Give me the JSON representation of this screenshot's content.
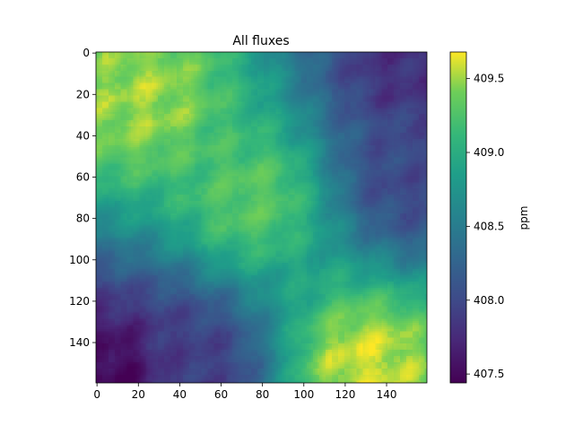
{
  "chart_data": {
    "type": "heatmap",
    "title": "All fluxes",
    "xlabel": "",
    "ylabel": "",
    "grid_size": [
      160,
      160
    ],
    "xlim": [
      0,
      159
    ],
    "ylim": [
      159,
      0
    ],
    "x_ticks": [
      "0",
      "20",
      "40",
      "60",
      "80",
      "100",
      "120",
      "140"
    ],
    "y_ticks": [
      "0",
      "20",
      "40",
      "60",
      "80",
      "100",
      "120",
      "140"
    ],
    "colorbar": {
      "label": "ppm",
      "range": [
        407.44,
        409.68
      ],
      "ticks": [
        "407.5",
        "408.0",
        "408.5",
        "409.0",
        "409.5"
      ],
      "colormap": "viridis"
    },
    "regions": [
      {
        "name": "upper-left high",
        "center": [
          22,
          22
        ],
        "value": 409.5
      },
      {
        "name": "top-right low",
        "center": [
          150,
          8
        ],
        "value": 407.8
      },
      {
        "name": "right-edge low",
        "center": [
          150,
          60
        ],
        "value": 408.0
      },
      {
        "name": "central ridge",
        "center": [
          75,
          70
        ],
        "value": 409.3
      },
      {
        "name": "lower-right high",
        "center": [
          130,
          150
        ],
        "value": 409.6
      },
      {
        "name": "bottom-left low",
        "center": [
          8,
          155
        ],
        "value": 407.5
      },
      {
        "name": "lower-center low",
        "center": [
          45,
          150
        ],
        "value": 407.9
      }
    ]
  }
}
